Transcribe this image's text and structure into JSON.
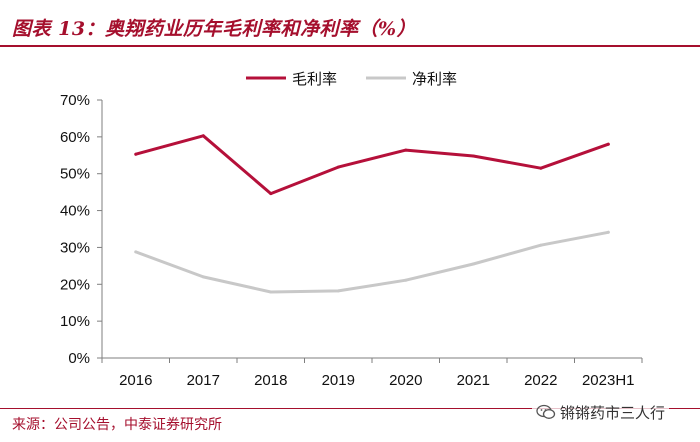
{
  "title": "图表 13：奥翔药业历年毛利率和净利率（%）",
  "source": "来源：公司公告，中泰证券研究所",
  "watermark": {
    "text": "锵锵药市三人行",
    "icon": "wechat-icon"
  },
  "colors": {
    "accent": "#a50f2d",
    "gross": "#b5103a",
    "net": "#c8c8c8",
    "axis": "#7f7f7f"
  },
  "chart_data": {
    "type": "line",
    "title": "奥翔药业历年毛利率和净利率（%）",
    "categories": [
      "2016",
      "2017",
      "2018",
      "2019",
      "2020",
      "2021",
      "2022",
      "2023H1"
    ],
    "series": [
      {
        "name": "毛利率",
        "values": [
          55.3,
          60.3,
          44.6,
          51.8,
          56.4,
          54.8,
          51.5,
          58.0
        ]
      },
      {
        "name": "净利率",
        "values": [
          28.8,
          22.0,
          17.9,
          18.2,
          21.1,
          25.5,
          30.6,
          34.1
        ]
      }
    ],
    "ylim": [
      0,
      70
    ],
    "yticks": [
      "0%",
      "10%",
      "20%",
      "30%",
      "40%",
      "50%",
      "60%",
      "70%"
    ],
    "xlabel": "",
    "ylabel": "",
    "legend_position": "top-center",
    "grid": false
  }
}
